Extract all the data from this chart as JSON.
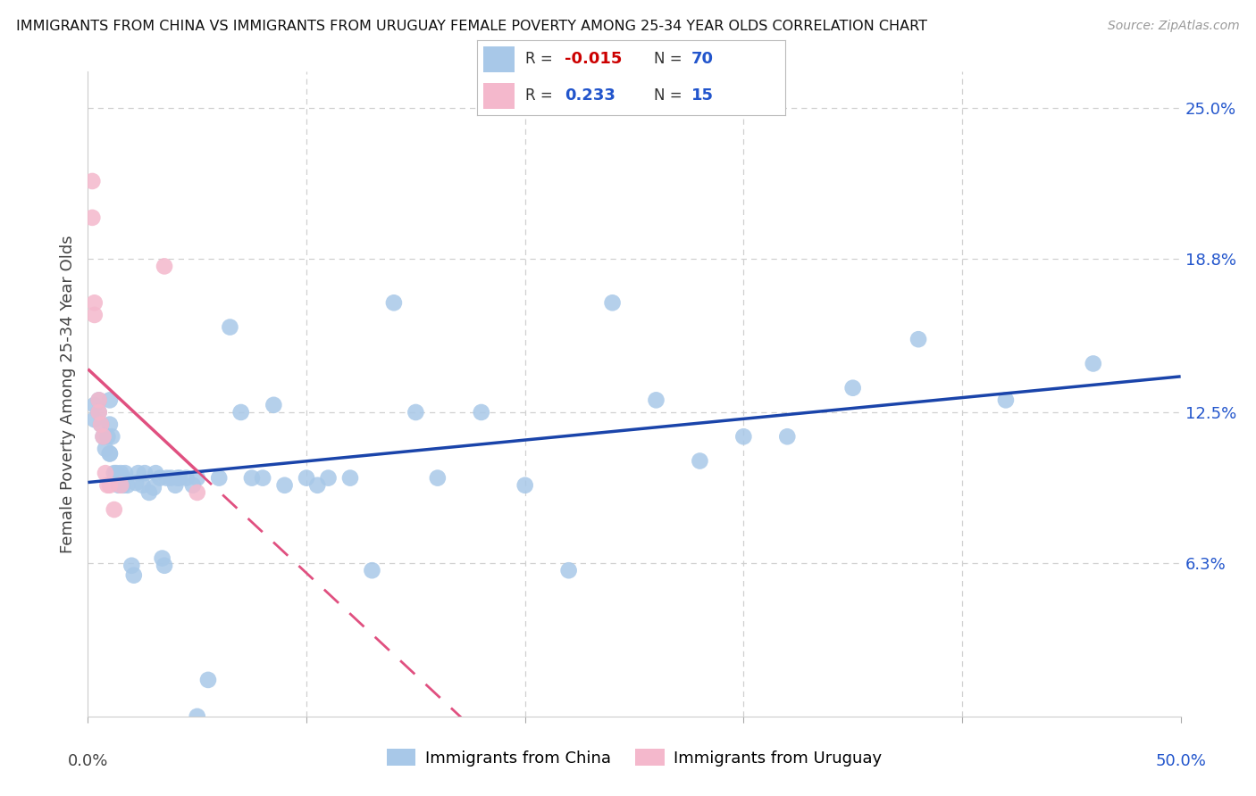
{
  "title": "IMMIGRANTS FROM CHINA VS IMMIGRANTS FROM URUGUAY FEMALE POVERTY AMONG 25-34 YEAR OLDS CORRELATION CHART",
  "source": "Source: ZipAtlas.com",
  "ylabel": "Female Poverty Among 25-34 Year Olds",
  "legend_r_china": "-0.015",
  "legend_n_china": "70",
  "legend_r_uruguay": "0.233",
  "legend_n_uruguay": "15",
  "legend_label_china": "Immigrants from China",
  "legend_label_uruguay": "Immigrants from Uruguay",
  "china_color": "#a8c8e8",
  "uruguay_color": "#f4b8cc",
  "china_line_color": "#1a44aa",
  "uruguay_line_color": "#e05080",
  "background_color": "#ffffff",
  "grid_color": "#d0d0d0",
  "china_x": [
    0.3,
    0.3,
    0.5,
    0.5,
    0.6,
    0.7,
    0.8,
    0.9,
    1.0,
    1.0,
    1.0,
    1.0,
    1.1,
    1.2,
    1.3,
    1.4,
    1.5,
    1.6,
    1.6,
    1.7,
    1.8,
    2.0,
    2.1,
    2.2,
    2.3,
    2.5,
    2.6,
    2.8,
    3.0,
    3.1,
    3.3,
    3.4,
    3.5,
    3.6,
    3.8,
    4.0,
    4.1,
    4.2,
    4.5,
    4.8,
    5.0,
    5.0,
    5.5,
    6.0,
    6.5,
    7.0,
    7.5,
    8.0,
    8.5,
    9.0,
    10.0,
    10.5,
    11.0,
    12.0,
    13.0,
    14.0,
    15.0,
    16.0,
    18.0,
    20.0,
    22.0,
    24.0,
    26.0,
    28.0,
    30.0,
    32.0,
    35.0,
    38.0,
    42.0,
    46.0
  ],
  "china_y": [
    12.8,
    12.2,
    13.0,
    12.5,
    12.0,
    11.5,
    11.0,
    11.5,
    10.8,
    12.0,
    13.0,
    10.8,
    11.5,
    10.0,
    10.0,
    9.5,
    10.0,
    9.8,
    9.5,
    10.0,
    9.5,
    6.2,
    5.8,
    9.6,
    10.0,
    9.5,
    10.0,
    9.2,
    9.4,
    10.0,
    9.8,
    6.5,
    6.2,
    9.8,
    9.8,
    9.5,
    9.8,
    9.8,
    9.8,
    9.5,
    9.8,
    0.0,
    1.5,
    9.8,
    16.0,
    12.5,
    9.8,
    9.8,
    12.8,
    9.5,
    9.8,
    9.5,
    9.8,
    9.8,
    6.0,
    17.0,
    12.5,
    9.8,
    12.5,
    9.5,
    6.0,
    17.0,
    13.0,
    10.5,
    11.5,
    11.5,
    13.5,
    15.5,
    13.0,
    14.5
  ],
  "uruguay_x": [
    0.2,
    0.2,
    0.3,
    0.3,
    0.5,
    0.5,
    0.6,
    0.7,
    0.8,
    0.9,
    1.0,
    1.2,
    1.5,
    3.5,
    5.0
  ],
  "uruguay_y": [
    22.0,
    20.5,
    17.0,
    16.5,
    13.0,
    12.5,
    12.0,
    11.5,
    10.0,
    9.5,
    9.5,
    8.5,
    9.5,
    18.5,
    9.2
  ],
  "xlim": [
    0.0,
    50.0
  ],
  "ylim": [
    0.0,
    26.5
  ],
  "ytick_vals": [
    6.3,
    12.5,
    18.8,
    25.0
  ],
  "ytick_labels": [
    "6.3%",
    "12.5%",
    "18.8%",
    "25.0%"
  ],
  "xtick_labels_show": [
    "0.0%",
    "50.0%"
  ]
}
